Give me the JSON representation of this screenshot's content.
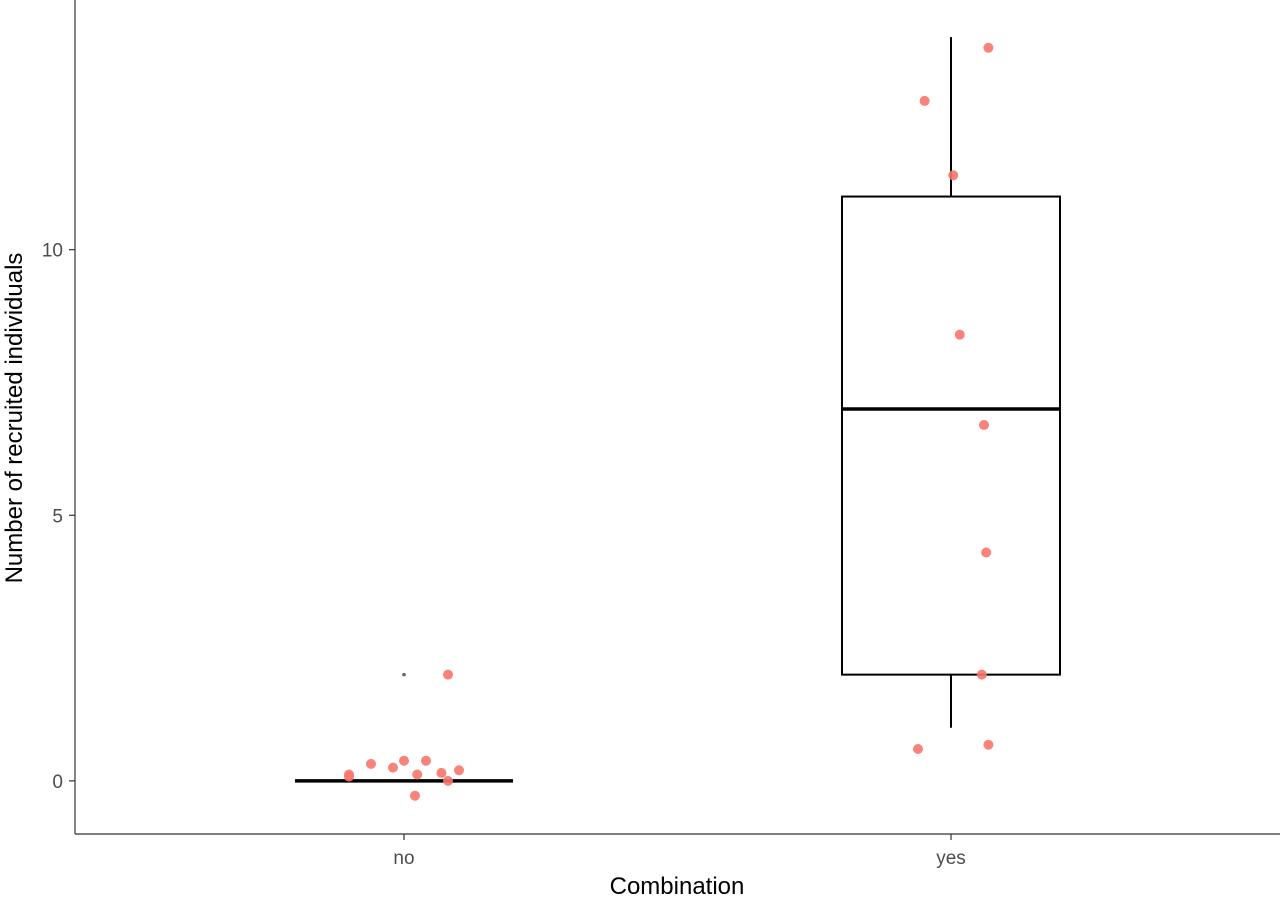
{
  "chart_data": {
    "type": "boxplot",
    "title": "",
    "xlabel": "Combination",
    "ylabel": "Number of recruited individuals",
    "ylim": [
      -1,
      14.7
    ],
    "yticks": [
      0,
      5,
      10
    ],
    "categories": [
      "no",
      "yes"
    ],
    "grid": false,
    "legend": "none",
    "box_color": "#000000",
    "point_color": "#f8766d",
    "outlier_color": "#000000",
    "boxes": [
      {
        "category": "no",
        "q1": 0,
        "median": 0,
        "q3": 0,
        "whisker_low": 0,
        "whisker_high": 0,
        "outliers": [
          2
        ]
      },
      {
        "category": "yes",
        "q1": 2,
        "median": 7,
        "q3": 11,
        "whisker_low": 1,
        "whisker_high": 14
      }
    ],
    "points": [
      {
        "category": "no",
        "jitter": -0.25,
        "y": 0.12
      },
      {
        "category": "no",
        "jitter": -0.25,
        "y": 0.08
      },
      {
        "category": "no",
        "jitter": -0.15,
        "y": 0.32
      },
      {
        "category": "no",
        "jitter": -0.05,
        "y": 0.25
      },
      {
        "category": "no",
        "jitter": 0.0,
        "y": 0.38
      },
      {
        "category": "no",
        "jitter": 0.06,
        "y": 0.12
      },
      {
        "category": "no",
        "jitter": 0.05,
        "y": -0.28
      },
      {
        "category": "no",
        "jitter": 0.1,
        "y": 0.38
      },
      {
        "category": "no",
        "jitter": 0.17,
        "y": 0.15
      },
      {
        "category": "no",
        "jitter": 0.2,
        "y": 0.0
      },
      {
        "category": "no",
        "jitter": 0.25,
        "y": 0.2
      },
      {
        "category": "no",
        "jitter": 0.2,
        "y": 2.0
      },
      {
        "category": "yes",
        "jitter": -0.15,
        "y": 0.6
      },
      {
        "category": "yes",
        "jitter": -0.12,
        "y": 12.8
      },
      {
        "category": "yes",
        "jitter": 0.01,
        "y": 11.4
      },
      {
        "category": "yes",
        "jitter": 0.04,
        "y": 8.4
      },
      {
        "category": "yes",
        "jitter": 0.15,
        "y": 6.7
      },
      {
        "category": "yes",
        "jitter": 0.16,
        "y": 4.3
      },
      {
        "category": "yes",
        "jitter": 0.14,
        "y": 2.0
      },
      {
        "category": "yes",
        "jitter": 0.17,
        "y": 0.68
      },
      {
        "category": "yes",
        "jitter": 0.17,
        "y": 13.8
      }
    ]
  }
}
